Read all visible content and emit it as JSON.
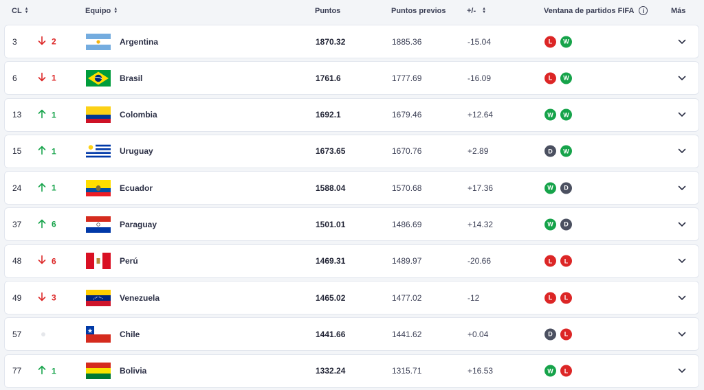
{
  "headers": {
    "rank": "CL",
    "team": "Equipo",
    "points": "Puntos",
    "previous_points": "Puntos previos",
    "diff": "+/-",
    "window": "Ventana de partidos FIFA",
    "more": "Más"
  },
  "icons": {
    "sort": "sort-arrows-icon",
    "info": "info-icon",
    "up": "arrow-up-icon",
    "down": "arrow-down-icon",
    "expand": "chevron-down-icon"
  },
  "colors": {
    "win": "#16a34a",
    "loss": "#dc2626",
    "draw": "#4b5060",
    "up": "#16a34a",
    "down": "#dc2626"
  },
  "rows": [
    {
      "rank": "3",
      "move_dir": "down",
      "move": "2",
      "team": "Argentina",
      "flag": "argentina",
      "points": "1870.32",
      "previous": "1885.36",
      "diff": "-15.04",
      "results": [
        "L",
        "W"
      ]
    },
    {
      "rank": "6",
      "move_dir": "down",
      "move": "1",
      "team": "Brasil",
      "flag": "brasil",
      "points": "1761.6",
      "previous": "1777.69",
      "diff": "-16.09",
      "results": [
        "L",
        "W"
      ]
    },
    {
      "rank": "13",
      "move_dir": "up",
      "move": "1",
      "team": "Colombia",
      "flag": "colombia",
      "points": "1692.1",
      "previous": "1679.46",
      "diff": "+12.64",
      "results": [
        "W",
        "W"
      ]
    },
    {
      "rank": "15",
      "move_dir": "up",
      "move": "1",
      "team": "Uruguay",
      "flag": "uruguay",
      "points": "1673.65",
      "previous": "1670.76",
      "diff": "+2.89",
      "results": [
        "D",
        "W"
      ]
    },
    {
      "rank": "24",
      "move_dir": "up",
      "move": "1",
      "team": "Ecuador",
      "flag": "ecuador",
      "points": "1588.04",
      "previous": "1570.68",
      "diff": "+17.36",
      "results": [
        "W",
        "D"
      ]
    },
    {
      "rank": "37",
      "move_dir": "up",
      "move": "6",
      "team": "Paraguay",
      "flag": "paraguay",
      "points": "1501.01",
      "previous": "1486.69",
      "diff": "+14.32",
      "results": [
        "W",
        "D"
      ]
    },
    {
      "rank": "48",
      "move_dir": "down",
      "move": "6",
      "team": "Perú",
      "flag": "peru",
      "points": "1469.31",
      "previous": "1489.97",
      "diff": "-20.66",
      "results": [
        "L",
        "L"
      ]
    },
    {
      "rank": "49",
      "move_dir": "down",
      "move": "3",
      "team": "Venezuela",
      "flag": "venezuela",
      "points": "1465.02",
      "previous": "1477.02",
      "diff": "-12",
      "results": [
        "L",
        "L"
      ]
    },
    {
      "rank": "57",
      "move_dir": "none",
      "move": "",
      "team": "Chile",
      "flag": "chile",
      "points": "1441.66",
      "previous": "1441.62",
      "diff": "+0.04",
      "results": [
        "D",
        "L"
      ]
    },
    {
      "rank": "77",
      "move_dir": "up",
      "move": "1",
      "team": "Bolivia",
      "flag": "bolivia",
      "points": "1332.24",
      "previous": "1315.71",
      "diff": "+16.53",
      "results": [
        "W",
        "L"
      ]
    }
  ]
}
